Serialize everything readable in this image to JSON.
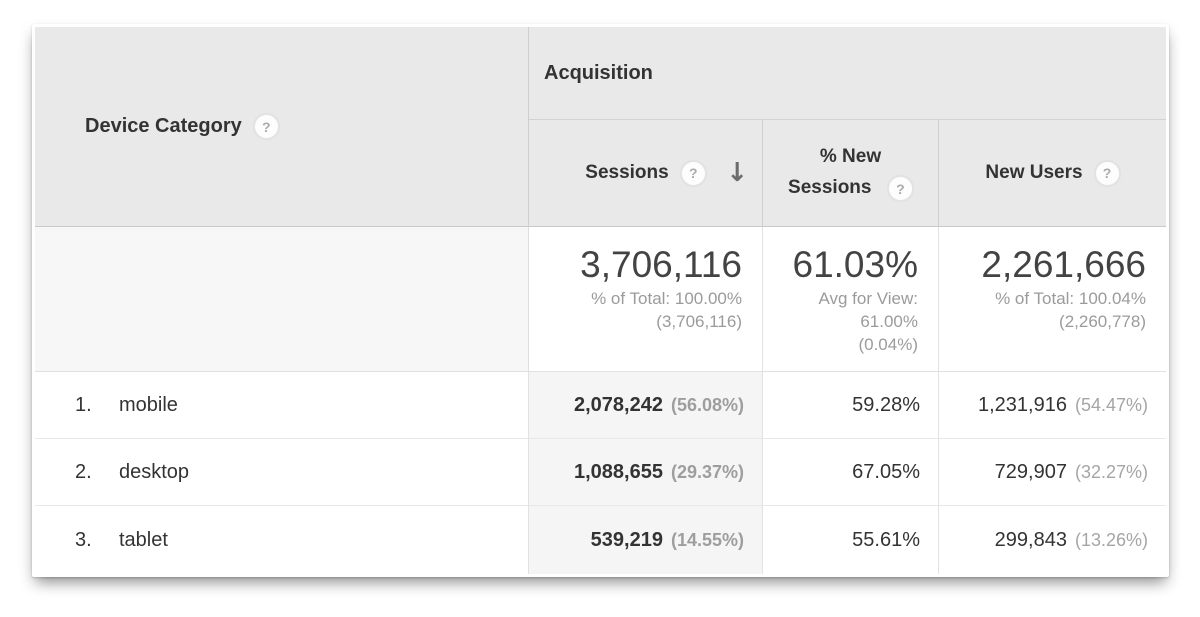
{
  "table": {
    "dimension_header": {
      "label": "Device Category",
      "help": "?"
    },
    "group_header": {
      "label": "Acquisition"
    },
    "metric_headers": {
      "sessions": {
        "label": "Sessions",
        "help": "?",
        "sort_arrow": "↓"
      },
      "new_sessions": {
        "line1": "% New",
        "line2": "Sessions",
        "help": "?"
      },
      "new_users": {
        "label": "New Users",
        "help": "?"
      }
    },
    "totals": {
      "sessions": {
        "value": "3,706,116",
        "sub1": "% of Total: 100.00%",
        "sub2": "(3,706,116)"
      },
      "new_sessions": {
        "value": "61.03%",
        "sub1": "Avg for View:",
        "sub2": "61.00%",
        "sub3": "(0.04%)"
      },
      "new_users": {
        "value": "2,261,666",
        "sub1": "% of Total: 100.04%",
        "sub2": "(2,260,778)"
      }
    },
    "rows": [
      {
        "index": "1.",
        "label": "mobile",
        "sessions": "2,078,242",
        "sessions_share": "(56.08%)",
        "pct_new_sessions": "59.28%",
        "new_users": "1,231,916",
        "new_users_share": "(54.47%)"
      },
      {
        "index": "2.",
        "label": "desktop",
        "sessions": "1,088,655",
        "sessions_share": "(29.37%)",
        "pct_new_sessions": "67.05%",
        "new_users": "729,907",
        "new_users_share": "(32.27%)"
      },
      {
        "index": "3.",
        "label": "tablet",
        "sessions": "539,219",
        "sessions_share": "(14.55%)",
        "pct_new_sessions": "55.61%",
        "new_users": "299,843",
        "new_users_share": "(13.26%)"
      }
    ],
    "colors": {
      "header_bg": "#e9e9e9",
      "sorted_column_bg": "#f5f5f5",
      "totals_dimension_bg": "#f7f7f7",
      "text_dark": "#333333",
      "text_gray": "#9b9b9b"
    }
  }
}
